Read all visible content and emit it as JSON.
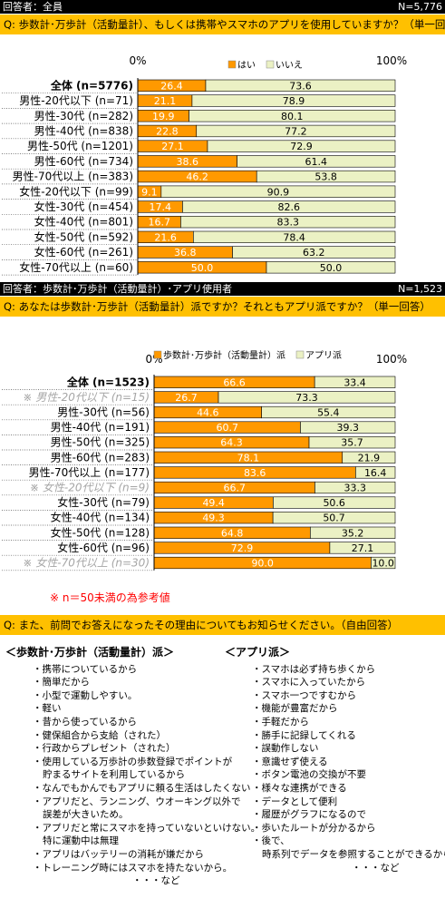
{
  "section1": {
    "header_left": "回答者：全員",
    "header_right": "N=5,776",
    "question": "Q:  歩数計･万歩計（活動量計）、もしくは携帯やスマホのアプリを使用していますか？（単一回答）"
  },
  "section2": {
    "header_left": "回答者：歩数計･万歩計（活動量計）･アプリ使用者",
    "header_right": "N=1,523",
    "question": "Q:  あなたは歩数計･万歩計（活動量計）派ですか？それともアプリ派ですか？（単一回答）",
    "note": "※  n＝50未満の為参考値"
  },
  "section3": {
    "question": "Q:  また、前問でお答えになったその理由についてもお知らせください。（自由回答）",
    "left_title": "＜歩数計･万歩計（活動量計）派＞",
    "left_items": [
      {
        "t": "携帯についているから",
        "k": "bullet"
      },
      {
        "t": "簡単だから",
        "k": "bullet"
      },
      {
        "t": "小型で運動しやすい。",
        "k": "bullet"
      },
      {
        "t": "軽い",
        "k": "bullet"
      },
      {
        "t": "昔から使っているから",
        "k": "bullet"
      },
      {
        "t": "健保組合から支給（された）",
        "k": "bullet"
      },
      {
        "t": "行政からプレゼント（された）",
        "k": "bullet"
      },
      {
        "t": "使用している万歩計の歩数登録でポイントが",
        "k": "bullet"
      },
      {
        "t": "貯まるサイトを利用しているから",
        "k": "cont"
      },
      {
        "t": "なんでもかんでもアプリに頼る生活はしたくない",
        "k": "bullet"
      },
      {
        "t": "アプリだと、ランニング、ウオーキング以外で",
        "k": "bullet"
      },
      {
        "t": "誤差が大きいため。",
        "k": "cont"
      },
      {
        "t": "アプリだと常にスマホを持っていないといけない。",
        "k": "bullet"
      },
      {
        "t": "特に運動中は無理",
        "k": "cont"
      },
      {
        "t": "アプリはバッテリーの消耗が嫌だから",
        "k": "bullet"
      },
      {
        "t": "トレーニング時にはスマホを持たないから。",
        "k": "bullet"
      },
      {
        "t": "・・・など",
        "k": "etc"
      }
    ],
    "right_title": "＜アプリ派＞",
    "right_items": [
      {
        "t": "スマホは必ず持ち歩くから",
        "k": "bullet"
      },
      {
        "t": "スマホに入っていたから",
        "k": "bullet"
      },
      {
        "t": "スマホ一つですむから",
        "k": "bullet"
      },
      {
        "t": "機能が豊富だから",
        "k": "bullet"
      },
      {
        "t": "手軽だから",
        "k": "bullet"
      },
      {
        "t": "勝手に記録してくれる",
        "k": "bullet"
      },
      {
        "t": "誤動作しない",
        "k": "bullet"
      },
      {
        "t": "意識せず使える",
        "k": "bullet"
      },
      {
        "t": "ボタン電池の交換が不要",
        "k": "bullet"
      },
      {
        "t": "様々な連携ができる",
        "k": "bullet"
      },
      {
        "t": "データとして便利",
        "k": "bullet"
      },
      {
        "t": "履歴がグラフになるので",
        "k": "bullet"
      },
      {
        "t": "歩いたルートが分かるから",
        "k": "bullet"
      },
      {
        "t": "後で、",
        "k": "bullet"
      },
      {
        "t": "時系列でデータを参照することができるから",
        "k": "cont"
      },
      {
        "t": "・・・など",
        "k": "etc"
      }
    ]
  },
  "colors": {
    "orange": "#ff9900",
    "light_green": "#ebf1c4",
    "question_bg": "#ffc000",
    "note_red": "#ff0000",
    "ref_gray": "#a6a6a6"
  },
  "chart_data": [
    {
      "type": "bar",
      "orientation": "horizontal-stacked-percent",
      "axis_min_label": "0%",
      "axis_max_label": "100%",
      "xlim": [
        0,
        100
      ],
      "series": [
        {
          "name": "はい",
          "color": "#ff9900"
        },
        {
          "name": "いいえ",
          "color": "#ebf1c4"
        }
      ],
      "categories": [
        "全体 (n=5776)",
        "男性-20代以下 (n=71)",
        "男性-30代 (n=282)",
        "男性-40代 (n=838)",
        "男性-50代 (n=1201)",
        "男性-60代 (n=734)",
        "男性-70代以上 (n=383)",
        "女性-20代以下 (n=99)",
        "女性-30代 (n=454)",
        "女性-40代 (n=801)",
        "女性-50代 (n=592)",
        "女性-60代 (n=261)",
        "女性-70代以上 (n=60)"
      ],
      "bold": [
        true,
        false,
        false,
        false,
        false,
        false,
        false,
        false,
        false,
        false,
        false,
        false,
        false
      ],
      "reference": [
        false,
        false,
        false,
        false,
        false,
        false,
        false,
        false,
        false,
        false,
        false,
        false,
        false
      ],
      "values": [
        [
          26.4,
          73.6
        ],
        [
          21.1,
          78.9
        ],
        [
          19.9,
          80.1
        ],
        [
          22.8,
          77.2
        ],
        [
          27.1,
          72.9
        ],
        [
          38.6,
          61.4
        ],
        [
          46.2,
          53.8
        ],
        [
          9.1,
          90.9
        ],
        [
          17.4,
          82.6
        ],
        [
          16.7,
          83.3
        ],
        [
          21.6,
          78.4
        ],
        [
          36.8,
          63.2
        ],
        [
          50.0,
          50.0
        ]
      ]
    },
    {
      "type": "bar",
      "orientation": "horizontal-stacked-percent",
      "axis_min_label": "0%",
      "axis_max_label": "100%",
      "xlim": [
        0,
        100
      ],
      "series": [
        {
          "name": "歩数計･万歩計（活動量計）派",
          "color": "#ff9900"
        },
        {
          "name": "アプリ派",
          "color": "#ebf1c4"
        }
      ],
      "categories": [
        "全体 (n=1523)",
        "※ 男性-20代以下 (n=15)",
        "男性-30代 (n=56)",
        "男性-40代 (n=191)",
        "男性-50代 (n=325)",
        "男性-60代 (n=283)",
        "男性-70代以上 (n=177)",
        "※ 女性-20代以下 (n=9)",
        "女性-30代 (n=79)",
        "女性-40代 (n=134)",
        "女性-50代 (n=128)",
        "女性-60代 (n=96)",
        "※ 女性-70代以上 (n=30)"
      ],
      "bold": [
        true,
        false,
        false,
        false,
        false,
        false,
        false,
        false,
        false,
        false,
        false,
        false,
        false
      ],
      "reference": [
        false,
        true,
        false,
        false,
        false,
        false,
        false,
        true,
        false,
        false,
        false,
        false,
        true
      ],
      "values": [
        [
          66.6,
          33.4
        ],
        [
          26.7,
          73.3
        ],
        [
          44.6,
          55.4
        ],
        [
          60.7,
          39.3
        ],
        [
          64.3,
          35.7
        ],
        [
          78.1,
          21.9
        ],
        [
          83.6,
          16.4
        ],
        [
          66.7,
          33.3
        ],
        [
          49.4,
          50.6
        ],
        [
          49.3,
          50.7
        ],
        [
          64.8,
          35.2
        ],
        [
          72.9,
          27.1
        ],
        [
          90.0,
          10.0
        ]
      ]
    }
  ]
}
